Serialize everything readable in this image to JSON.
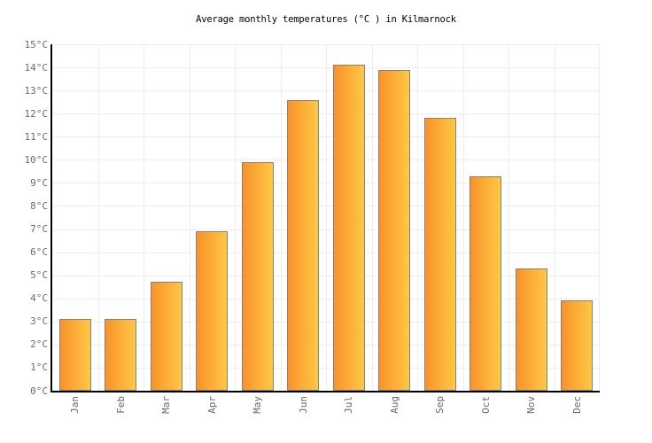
{
  "chart_data": {
    "type": "bar",
    "title": "Average monthly temperatures (°C ) in Kilmarnock",
    "categories": [
      "Jan",
      "Feb",
      "Mar",
      "Apr",
      "May",
      "Jun",
      "Jul",
      "Aug",
      "Sep",
      "Oct",
      "Nov",
      "Dec"
    ],
    "values": [
      3.1,
      3.1,
      4.7,
      6.9,
      9.9,
      12.6,
      14.1,
      13.9,
      11.8,
      9.3,
      5.3,
      3.9
    ],
    "unit": "°C",
    "xlabel": "",
    "ylabel": "",
    "ylim": [
      0,
      15
    ],
    "ytick_step": 1,
    "yticks": [
      "0°C",
      "1°C",
      "2°C",
      "3°C",
      "4°C",
      "5°C",
      "6°C",
      "7°C",
      "8°C",
      "9°C",
      "10°C",
      "11°C",
      "12°C",
      "13°C",
      "14°C",
      "15°C"
    ],
    "grid": "on",
    "legend": "none",
    "colors": {
      "bar_gradient_left": "#F8922A",
      "bar_gradient_right": "#FFC844",
      "bar_border": "#828282",
      "grid_line": "#EDEDED",
      "axis_line": "#000000",
      "tick_label": "#6B6B6B",
      "title": "#000000",
      "background": "#FFFFFF"
    }
  }
}
